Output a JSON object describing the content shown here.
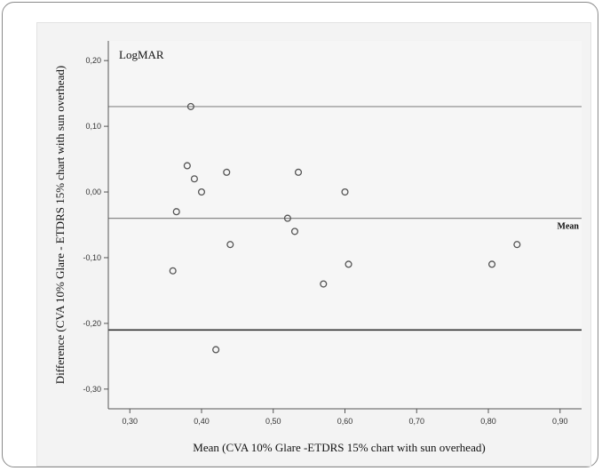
{
  "chart_data": {
    "type": "scatter",
    "title": "",
    "panel_label": "LogMAR",
    "xlabel": "Mean (CVA 10% Glare -ETDRS 15% chart with sun overhead)",
    "ylabel": "Difference (CVA 10% Glare - ETDRS 15% chart with sun overhead)",
    "xlim": [
      0.27,
      0.93
    ],
    "ylim": [
      -0.33,
      0.23
    ],
    "x_ticks": [
      0.3,
      0.4,
      0.5,
      0.6,
      0.7,
      0.8,
      0.9
    ],
    "x_tick_labels": [
      "0,30",
      "0,40",
      "0,50",
      "0,60",
      "0,70",
      "0,80",
      "0,90"
    ],
    "y_ticks": [
      0.2,
      0.1,
      0.0,
      -0.1,
      -0.2,
      -0.3
    ],
    "y_tick_labels": [
      "0,20",
      "0,10",
      "0,00",
      "-0,10",
      "-0,20",
      "-0,30"
    ],
    "grid": false,
    "reference_lines": [
      {
        "y": 0.13,
        "label": "",
        "color": "#888888"
      },
      {
        "y": -0.04,
        "label": "Mean",
        "color": "#888888"
      },
      {
        "y": -0.21,
        "label": "",
        "color": "#333333"
      }
    ],
    "points": [
      {
        "x": 0.385,
        "y": 0.13
      },
      {
        "x": 0.38,
        "y": 0.04
      },
      {
        "x": 0.39,
        "y": 0.02
      },
      {
        "x": 0.4,
        "y": 0.0
      },
      {
        "x": 0.365,
        "y": -0.03
      },
      {
        "x": 0.36,
        "y": -0.12
      },
      {
        "x": 0.435,
        "y": 0.03
      },
      {
        "x": 0.44,
        "y": -0.08
      },
      {
        "x": 0.42,
        "y": -0.24
      },
      {
        "x": 0.52,
        "y": -0.04
      },
      {
        "x": 0.53,
        "y": -0.06
      },
      {
        "x": 0.535,
        "y": 0.03
      },
      {
        "x": 0.57,
        "y": -0.14
      },
      {
        "x": 0.6,
        "y": 0.0
      },
      {
        "x": 0.605,
        "y": -0.11
      },
      {
        "x": 0.805,
        "y": -0.11
      },
      {
        "x": 0.84,
        "y": -0.08
      }
    ],
    "colors": {
      "marker": "#555555",
      "axis": "#555555"
    }
  }
}
